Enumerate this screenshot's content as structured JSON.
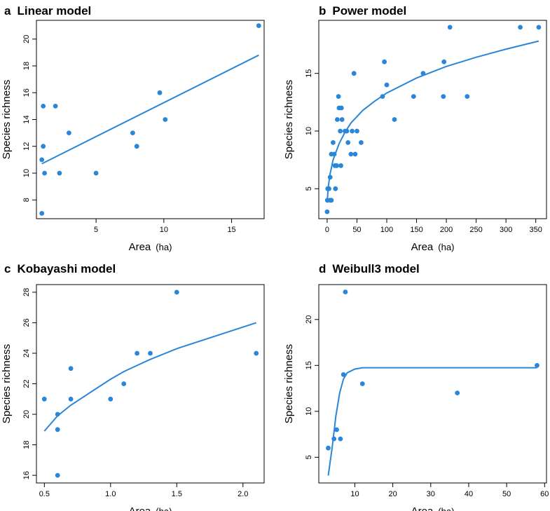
{
  "colors": {
    "series": "#2a86d8",
    "axis": "#000000",
    "background": "#ffffff"
  },
  "chart_data": [
    {
      "type": "scatter",
      "panel_letter": "a",
      "title": "Linear model",
      "xlabel": "Area",
      "xunit": "(ha)",
      "ylabel": "Species richness",
      "xlim": [
        0.6,
        17.4
      ],
      "ylim": [
        6.6,
        21.4
      ],
      "xticks": [
        5,
        10,
        15
      ],
      "yticks": [
        8,
        10,
        12,
        14,
        16,
        18,
        20
      ],
      "grid": false,
      "points": [
        {
          "x": 1,
          "y": 7
        },
        {
          "x": 1,
          "y": 11
        },
        {
          "x": 1.1,
          "y": 12
        },
        {
          "x": 1.2,
          "y": 10
        },
        {
          "x": 1.1,
          "y": 15
        },
        {
          "x": 2,
          "y": 15
        },
        {
          "x": 2.3,
          "y": 10
        },
        {
          "x": 3,
          "y": 13
        },
        {
          "x": 5,
          "y": 10
        },
        {
          "x": 7.7,
          "y": 13
        },
        {
          "x": 8,
          "y": 12
        },
        {
          "x": 9.7,
          "y": 16
        },
        {
          "x": 10.1,
          "y": 14
        },
        {
          "x": 17,
          "y": 21
        }
      ],
      "fit": [
        {
          "x": 1,
          "y": 10.7
        },
        {
          "x": 17,
          "y": 18.8
        }
      ]
    },
    {
      "type": "scatter",
      "panel_letter": "b",
      "title": "Power model",
      "xlabel": "Area",
      "xunit": "(ha)",
      "ylabel": "Species richness",
      "xlim": [
        -14,
        368
      ],
      "ylim": [
        2.4,
        19.6
      ],
      "xticks": [
        0,
        50,
        100,
        150,
        200,
        250,
        300,
        350
      ],
      "yticks": [
        5,
        10,
        15
      ],
      "grid": false,
      "points": [
        {
          "x": 0,
          "y": 3
        },
        {
          "x": 0.5,
          "y": 4
        },
        {
          "x": 1,
          "y": 5
        },
        {
          "x": 3,
          "y": 5
        },
        {
          "x": 5,
          "y": 6
        },
        {
          "x": 5,
          "y": 4
        },
        {
          "x": 7,
          "y": 4
        },
        {
          "x": 7,
          "y": 8
        },
        {
          "x": 10,
          "y": 9
        },
        {
          "x": 12,
          "y": 8
        },
        {
          "x": 13,
          "y": 7
        },
        {
          "x": 14,
          "y": 5
        },
        {
          "x": 16,
          "y": 7
        },
        {
          "x": 17,
          "y": 11
        },
        {
          "x": 19,
          "y": 13
        },
        {
          "x": 20,
          "y": 12
        },
        {
          "x": 22,
          "y": 10
        },
        {
          "x": 23,
          "y": 7
        },
        {
          "x": 24,
          "y": 12
        },
        {
          "x": 25,
          "y": 11
        },
        {
          "x": 30,
          "y": 10
        },
        {
          "x": 33,
          "y": 10
        },
        {
          "x": 35,
          "y": 9
        },
        {
          "x": 40,
          "y": 8
        },
        {
          "x": 42,
          "y": 10
        },
        {
          "x": 45,
          "y": 15
        },
        {
          "x": 47,
          "y": 8
        },
        {
          "x": 50,
          "y": 10
        },
        {
          "x": 57,
          "y": 9
        },
        {
          "x": 93,
          "y": 13
        },
        {
          "x": 96,
          "y": 16
        },
        {
          "x": 100,
          "y": 14
        },
        {
          "x": 113,
          "y": 11
        },
        {
          "x": 145,
          "y": 13
        },
        {
          "x": 161,
          "y": 15
        },
        {
          "x": 195,
          "y": 13
        },
        {
          "x": 196,
          "y": 16
        },
        {
          "x": 206,
          "y": 19
        },
        {
          "x": 235,
          "y": 13
        },
        {
          "x": 324,
          "y": 19
        },
        {
          "x": 355,
          "y": 19
        }
      ],
      "fit": [
        {
          "x": 0,
          "y": 3.8
        },
        {
          "x": 2,
          "y": 5.2
        },
        {
          "x": 5,
          "y": 6.3
        },
        {
          "x": 10,
          "y": 7.5
        },
        {
          "x": 20,
          "y": 8.9
        },
        {
          "x": 30,
          "y": 9.9
        },
        {
          "x": 40,
          "y": 10.7
        },
        {
          "x": 60,
          "y": 11.8
        },
        {
          "x": 80,
          "y": 12.6
        },
        {
          "x": 100,
          "y": 13.3
        },
        {
          "x": 150,
          "y": 14.6
        },
        {
          "x": 200,
          "y": 15.6
        },
        {
          "x": 250,
          "y": 16.4
        },
        {
          "x": 300,
          "y": 17.1
        },
        {
          "x": 355,
          "y": 17.8
        }
      ]
    },
    {
      "type": "scatter",
      "panel_letter": "c",
      "title": "Kobayashi model",
      "xlabel": "Area",
      "xunit": "(ha)",
      "ylabel": "Species richness",
      "xlim": [
        0.44,
        2.16
      ],
      "ylim": [
        15.5,
        28.5
      ],
      "xticks": [
        0.5,
        1.0,
        1.5,
        2.0
      ],
      "xtick_labels": [
        "0.5",
        "1.0",
        "1.5",
        "2.0"
      ],
      "yticks": [
        16,
        18,
        20,
        22,
        24,
        26,
        28
      ],
      "grid": false,
      "points": [
        {
          "x": 0.5,
          "y": 21
        },
        {
          "x": 0.6,
          "y": 20
        },
        {
          "x": 0.6,
          "y": 19
        },
        {
          "x": 0.6,
          "y": 16
        },
        {
          "x": 0.7,
          "y": 21
        },
        {
          "x": 0.7,
          "y": 23
        },
        {
          "x": 1.0,
          "y": 21
        },
        {
          "x": 1.1,
          "y": 22
        },
        {
          "x": 1.2,
          "y": 24
        },
        {
          "x": 1.3,
          "y": 24
        },
        {
          "x": 1.5,
          "y": 28
        },
        {
          "x": 2.1,
          "y": 24
        }
      ],
      "fit": [
        {
          "x": 0.5,
          "y": 18.9
        },
        {
          "x": 0.6,
          "y": 19.9
        },
        {
          "x": 0.7,
          "y": 20.6
        },
        {
          "x": 1.0,
          "y": 22.3
        },
        {
          "x": 1.1,
          "y": 22.8
        },
        {
          "x": 1.2,
          "y": 23.2
        },
        {
          "x": 1.3,
          "y": 23.6
        },
        {
          "x": 1.5,
          "y": 24.3
        },
        {
          "x": 2.1,
          "y": 26.0
        }
      ]
    },
    {
      "type": "scatter",
      "panel_letter": "d",
      "title": "Weibull3 model",
      "xlabel": "Area",
      "xunit": "(ha)",
      "ylabel": "Species richness",
      "xlim": [
        0.5,
        60.5
      ],
      "ylim": [
        2.2,
        23.8
      ],
      "xticks": [
        10,
        20,
        30,
        40,
        50,
        60
      ],
      "yticks": [
        5,
        10,
        15,
        20
      ],
      "grid": false,
      "points": [
        {
          "x": 3,
          "y": 6
        },
        {
          "x": 4.5,
          "y": 7
        },
        {
          "x": 5.2,
          "y": 8
        },
        {
          "x": 6.2,
          "y": 7
        },
        {
          "x": 7,
          "y": 14
        },
        {
          "x": 7.5,
          "y": 23
        },
        {
          "x": 12,
          "y": 13
        },
        {
          "x": 37,
          "y": 12
        },
        {
          "x": 58,
          "y": 15
        }
      ],
      "fit": [
        {
          "x": 3,
          "y": 3
        },
        {
          "x": 4,
          "y": 6
        },
        {
          "x": 5,
          "y": 9.5
        },
        {
          "x": 6,
          "y": 12
        },
        {
          "x": 7,
          "y": 13.5
        },
        {
          "x": 8,
          "y": 14.2
        },
        {
          "x": 10,
          "y": 14.6
        },
        {
          "x": 12,
          "y": 14.75
        },
        {
          "x": 58,
          "y": 14.75
        }
      ]
    }
  ]
}
